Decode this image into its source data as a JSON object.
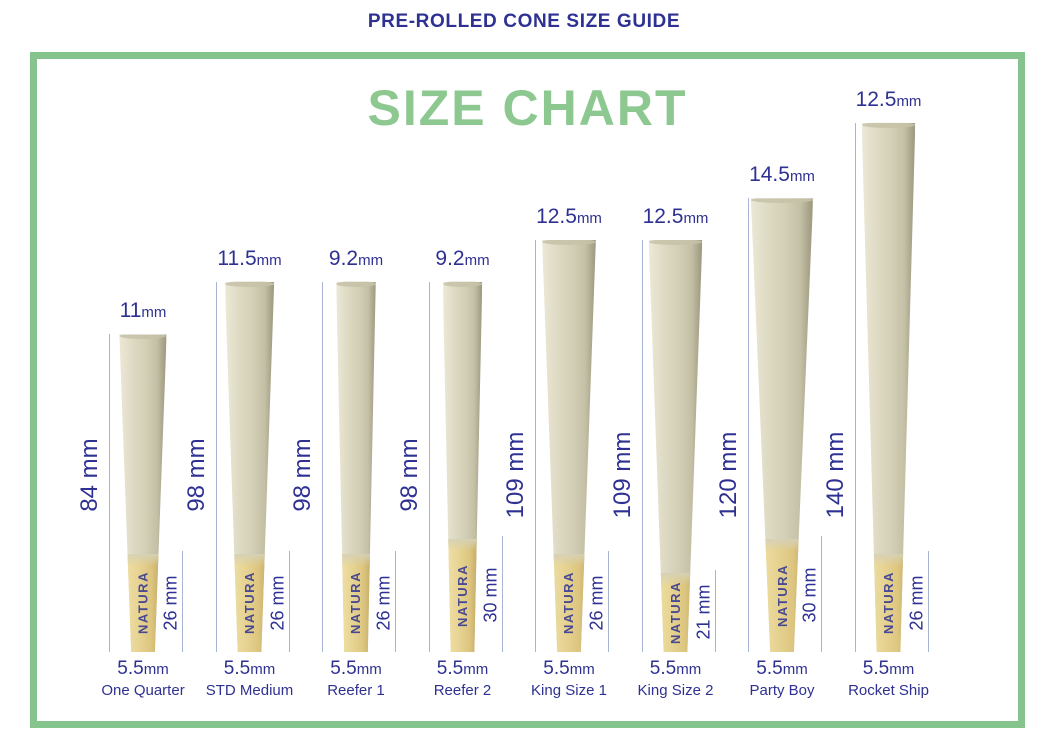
{
  "page": {
    "title": "PRE-ROLLED CONE SIZE GUIDE"
  },
  "chart": {
    "heading": "SIZE CHART",
    "brand": "NATURA",
    "colors": {
      "navy": "#2e3192",
      "green_heading": "#8cc88f",
      "green_border": "#85c48c",
      "measure_line": "#a8b4d4",
      "cone_body": "#d4d0b7",
      "cone_filter": "#e8d595"
    },
    "cones": [
      {
        "name": "One Quarter",
        "top_value": "11",
        "top_unit": "mm",
        "top_diameter_mm": 11,
        "length_label": "84 mm",
        "length_mm": 84,
        "filter_label": "26 mm",
        "filter_mm": 26,
        "bottom_value": "5.5",
        "bottom_unit": "mm",
        "bottom_diameter_mm": 5.5
      },
      {
        "name": "STD Medium",
        "top_value": "11.5",
        "top_unit": "mm",
        "top_diameter_mm": 11.5,
        "length_label": "98 mm",
        "length_mm": 98,
        "filter_label": "26 mm",
        "filter_mm": 26,
        "bottom_value": "5.5",
        "bottom_unit": "mm",
        "bottom_diameter_mm": 5.5
      },
      {
        "name": "Reefer 1",
        "top_value": "9.2",
        "top_unit": "mm",
        "top_diameter_mm": 9.2,
        "length_label": "98 mm",
        "length_mm": 98,
        "filter_label": "26 mm",
        "filter_mm": 26,
        "bottom_value": "5.5",
        "bottom_unit": "mm",
        "bottom_diameter_mm": 5.5
      },
      {
        "name": "Reefer 2",
        "top_value": "9.2",
        "top_unit": "mm",
        "top_diameter_mm": 9.2,
        "length_label": "98 mm",
        "length_mm": 98,
        "filter_label": "30 mm",
        "filter_mm": 30,
        "bottom_value": "5.5",
        "bottom_unit": "mm",
        "bottom_diameter_mm": 5.5
      },
      {
        "name": "King Size 1",
        "top_value": "12.5",
        "top_unit": "mm",
        "top_diameter_mm": 12.5,
        "length_label": "109 mm",
        "length_mm": 109,
        "filter_label": "26 mm",
        "filter_mm": 26,
        "bottom_value": "5.5",
        "bottom_unit": "mm",
        "bottom_diameter_mm": 5.5
      },
      {
        "name": "King Size 2",
        "top_value": "12.5",
        "top_unit": "mm",
        "top_diameter_mm": 12.5,
        "length_label": "109 mm",
        "length_mm": 109,
        "filter_label": "21 mm",
        "filter_mm": 21,
        "bottom_value": "5.5",
        "bottom_unit": "mm",
        "bottom_diameter_mm": 5.5
      },
      {
        "name": "Party Boy",
        "top_value": "14.5",
        "top_unit": "mm",
        "top_diameter_mm": 14.5,
        "length_label": "120 mm",
        "length_mm": 120,
        "filter_label": "30 mm",
        "filter_mm": 30,
        "bottom_value": "5.5",
        "bottom_unit": "mm",
        "bottom_diameter_mm": 5.5
      },
      {
        "name": "Rocket Ship",
        "top_value": "12.5",
        "top_unit": "mm",
        "top_diameter_mm": 12.5,
        "length_label": "140 mm",
        "length_mm": 140,
        "filter_label": "26 mm",
        "filter_mm": 26,
        "bottom_value": "5.5",
        "bottom_unit": "mm",
        "bottom_diameter_mm": 5.5
      }
    ]
  }
}
